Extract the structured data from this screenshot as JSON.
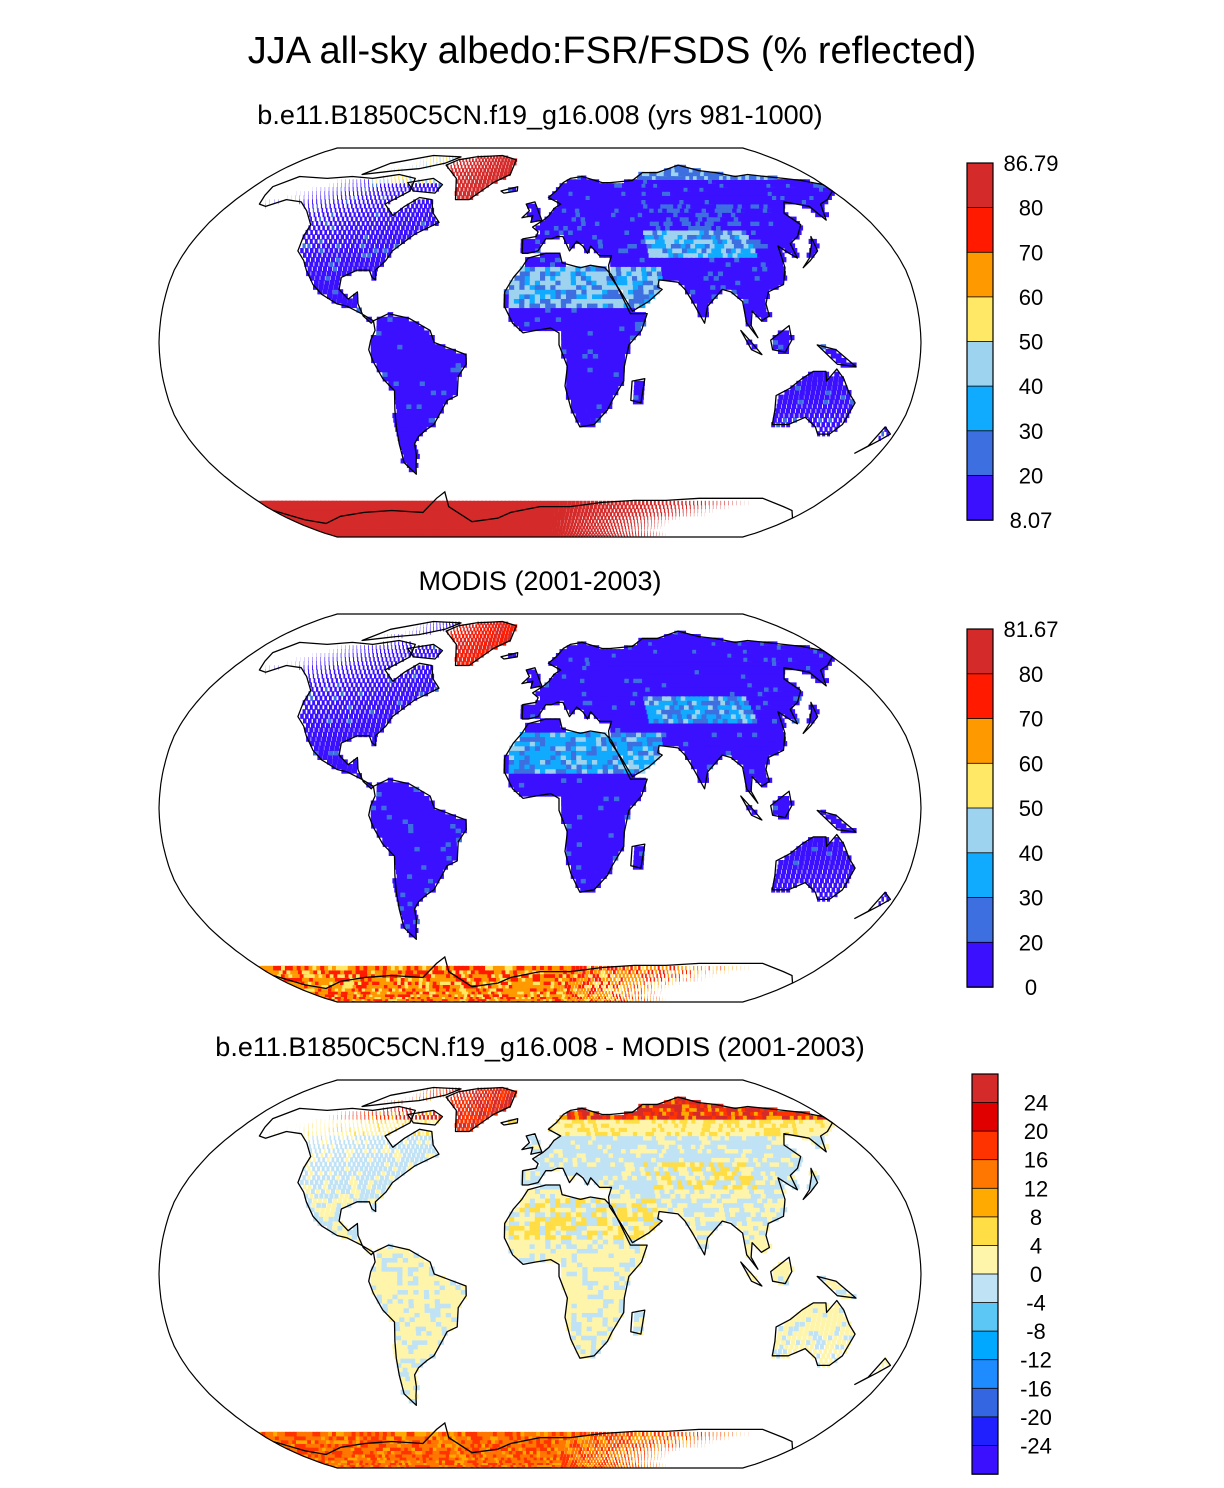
{
  "figure": {
    "title": "JJA all-sky albedo:FSR/FSDS (% reflected)"
  },
  "panels": [
    {
      "title": "b.e11.B1850C5CN.f19_g16.008 (yrs 981-1000)",
      "colorbar": {
        "labels": [
          "86.79",
          "80",
          "70",
          "60",
          "50",
          "40",
          "30",
          "20",
          "8.07"
        ],
        "colors": [
          "#d42a2a",
          "#ff1a00",
          "#ff9900",
          "#ffe866",
          "#9ed3ef",
          "#10aaff",
          "#3d6fe0",
          "#3a10ff"
        ]
      },
      "scheme": "model"
    },
    {
      "title": "MODIS (2001-2003)",
      "colorbar": {
        "labels": [
          "81.67",
          "80",
          "70",
          "60",
          "50",
          "40",
          "30",
          "20",
          "0"
        ],
        "colors": [
          "#d42a2a",
          "#ff1a00",
          "#ff9900",
          "#ffe866",
          "#9ed3ef",
          "#10aaff",
          "#3d6fe0",
          "#3a10ff"
        ]
      },
      "scheme": "obs"
    },
    {
      "title": "b.e11.B1850C5CN.f19_g16.008 - MODIS (2001-2003)",
      "colorbar": {
        "labels": [
          "24",
          "20",
          "16",
          "12",
          "8",
          "4",
          "0",
          "-4",
          "-8",
          "-12",
          "-16",
          "-20",
          "-24"
        ],
        "colors": [
          "#d42a2a",
          "#e00000",
          "#ff3300",
          "#ff7700",
          "#ffaa00",
          "#ffdd44",
          "#fff5aa",
          "#c0e2f5",
          "#5cc6f5",
          "#00a8ff",
          "#1e8cff",
          "#3366e0",
          "#2020ff",
          "#3a10ff"
        ]
      },
      "scheme": "diff"
    }
  ]
}
